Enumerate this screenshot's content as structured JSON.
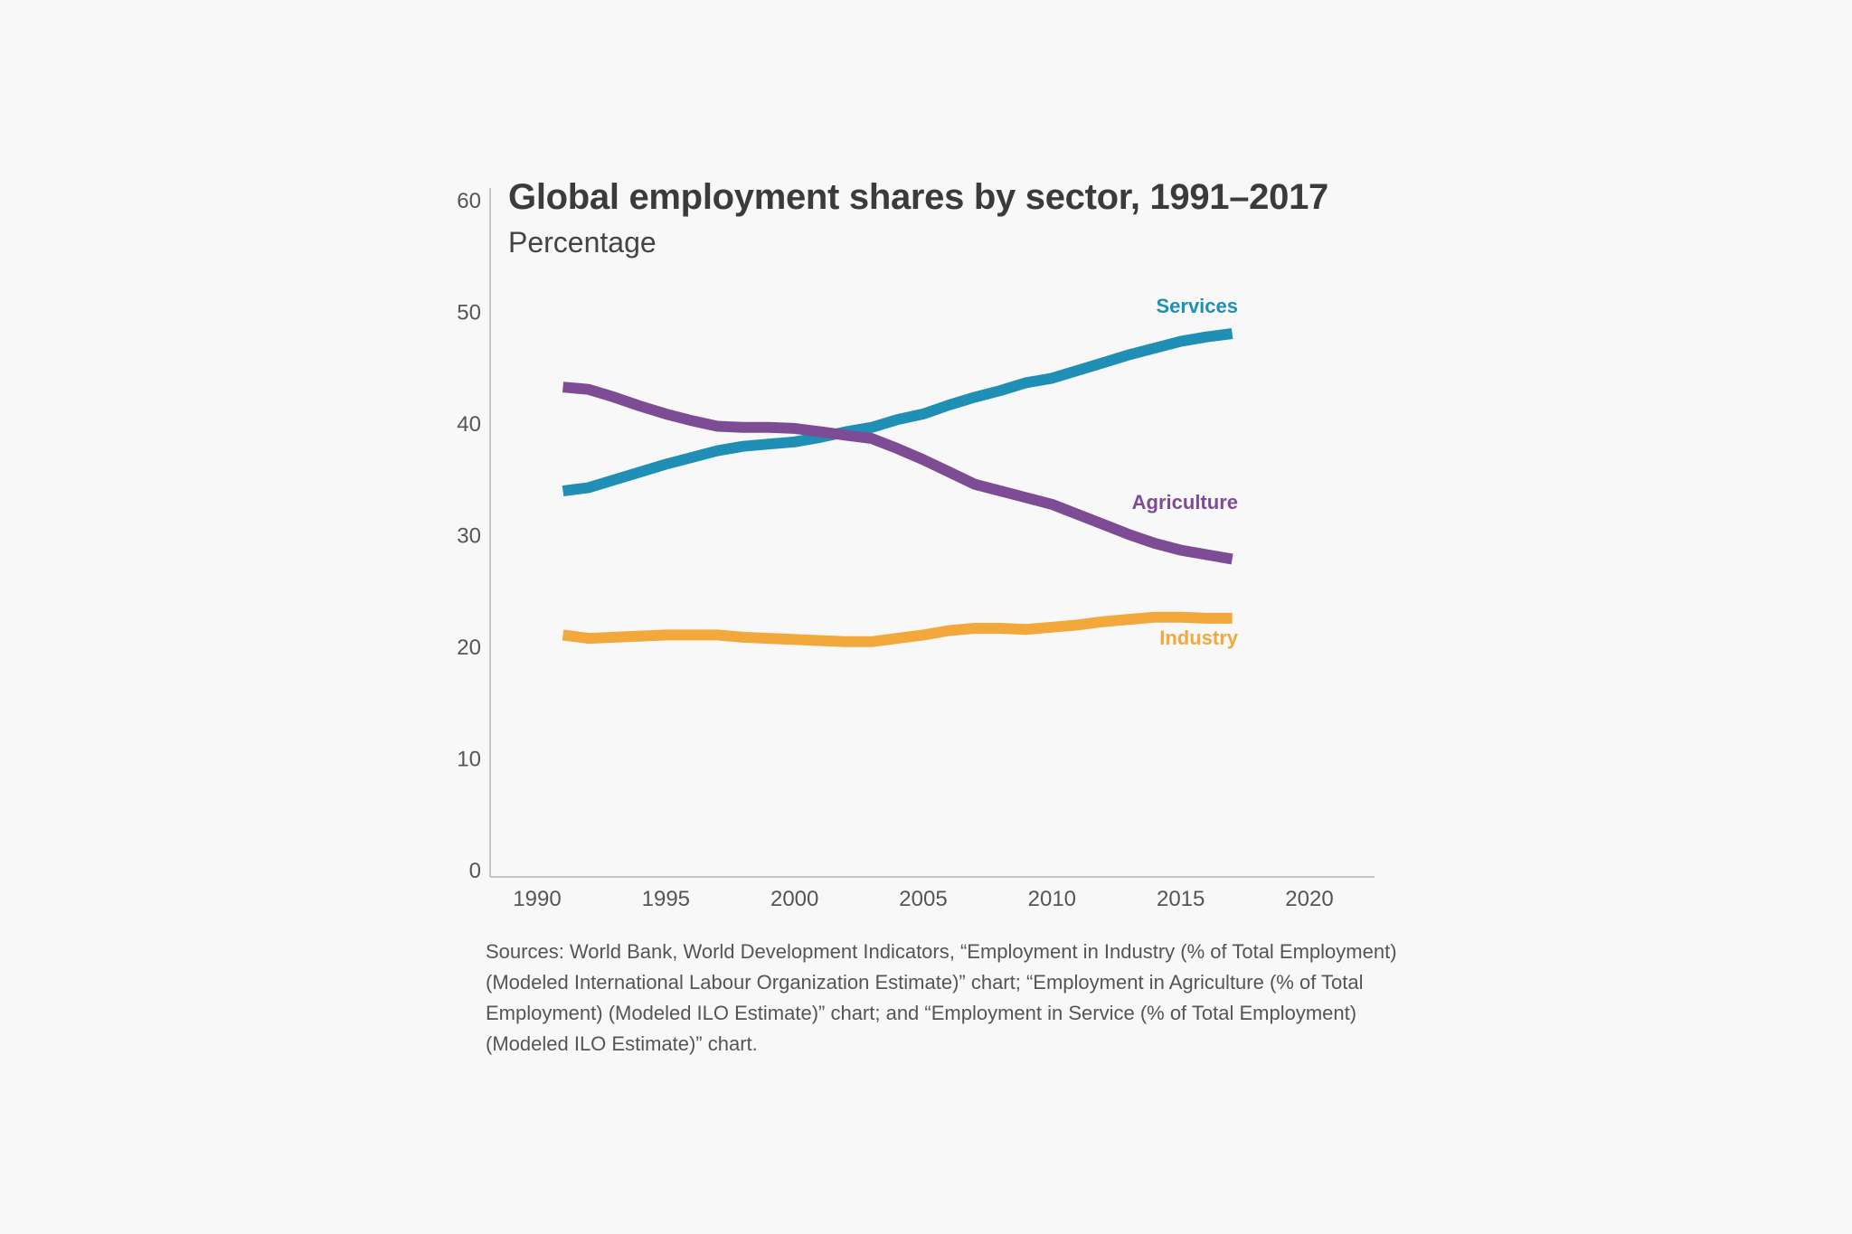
{
  "chart_data": {
    "type": "line",
    "title": "Global employment shares by sector, 1991–2017",
    "subtitle": "Percentage",
    "xlabel": "",
    "ylabel": "",
    "xlim": [
      1988,
      2022
    ],
    "ylim": [
      0,
      60
    ],
    "xticks": [
      "1990",
      "1995",
      "2000",
      "2005",
      "2010",
      "2015",
      "2020"
    ],
    "yticks": [
      "0",
      "10",
      "20",
      "30",
      "40",
      "50",
      "60"
    ],
    "grid": false,
    "legend": "direct labels at line ends",
    "x": [
      1991,
      1992,
      1993,
      1994,
      1995,
      1996,
      1997,
      1998,
      1999,
      2000,
      2001,
      2002,
      2003,
      2004,
      2005,
      2006,
      2007,
      2008,
      2009,
      2010,
      2011,
      2012,
      2013,
      2014,
      2015,
      2016,
      2017
    ],
    "series": [
      {
        "name": "Services",
        "color": "#1f8fb5",
        "values": [
          34.0,
          34.3,
          35.0,
          35.7,
          36.4,
          37.0,
          37.6,
          38.0,
          38.2,
          38.4,
          38.8,
          39.3,
          39.7,
          40.4,
          40.9,
          41.7,
          42.4,
          43.0,
          43.7,
          44.1,
          44.8,
          45.5,
          46.2,
          46.8,
          47.4,
          47.8,
          48.1
        ]
      },
      {
        "name": "Agriculture",
        "color": "#7d4c94",
        "values": [
          43.3,
          43.1,
          42.4,
          41.6,
          40.9,
          40.3,
          39.8,
          39.7,
          39.7,
          39.6,
          39.3,
          39.0,
          38.7,
          37.8,
          36.8,
          35.7,
          34.6,
          34.0,
          33.4,
          32.8,
          31.9,
          31.0,
          30.1,
          29.3,
          28.7,
          28.3,
          27.9
        ]
      },
      {
        "name": "Industry",
        "color": "#f2a83a",
        "values": [
          21.1,
          20.8,
          20.9,
          21.0,
          21.1,
          21.1,
          21.1,
          20.9,
          20.8,
          20.7,
          20.6,
          20.5,
          20.5,
          20.8,
          21.1,
          21.5,
          21.7,
          21.7,
          21.6,
          21.8,
          22.0,
          22.3,
          22.5,
          22.7,
          22.7,
          22.6,
          22.6
        ]
      }
    ]
  },
  "sources": "Sources: World Bank, World Development Indicators, “Employment in Industry (% of Total Employment) (Modeled International Labour Organization Estimate)” chart; “Employment in Agriculture (% of Total Employment) (Modeled ILO Estimate)” chart; and “Employment in Service (% of Total Employment) (Modeled ILO Estimate)” chart."
}
